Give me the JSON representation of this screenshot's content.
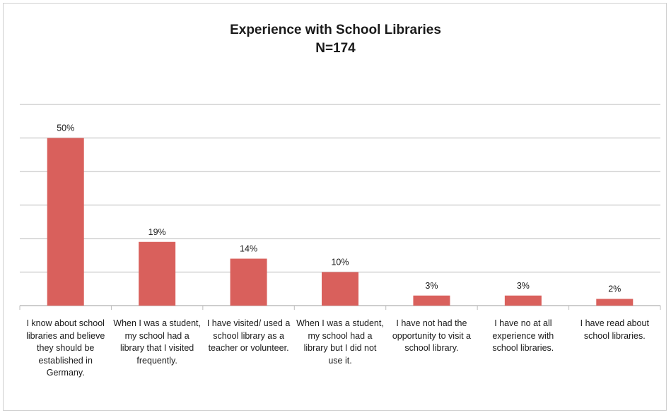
{
  "chart_data": {
    "type": "bar",
    "title": "Experience with School Libraries",
    "subtitle": "N=174",
    "categories": [
      "I know about school libraries and believe they should be established in Germany.",
      "When I was a student, my school had a library that I visited frequently.",
      "I have visited/ used a school library as a teacher or volunteer.",
      "When I was a student, my school had a library but I did not use it.",
      "I have not had the opportunity to visit a school library.",
      "I have no at all experience with school libraries.",
      "I have read about school libraries."
    ],
    "values": [
      50,
      19,
      14,
      10,
      3,
      3,
      2
    ],
    "data_labels": [
      "50%",
      "19%",
      "14%",
      "10%",
      "3%",
      "3%",
      "2%"
    ],
    "ylim": [
      0,
      60
    ],
    "grid": true,
    "legend": "none",
    "bar_color": "#D9605C"
  }
}
